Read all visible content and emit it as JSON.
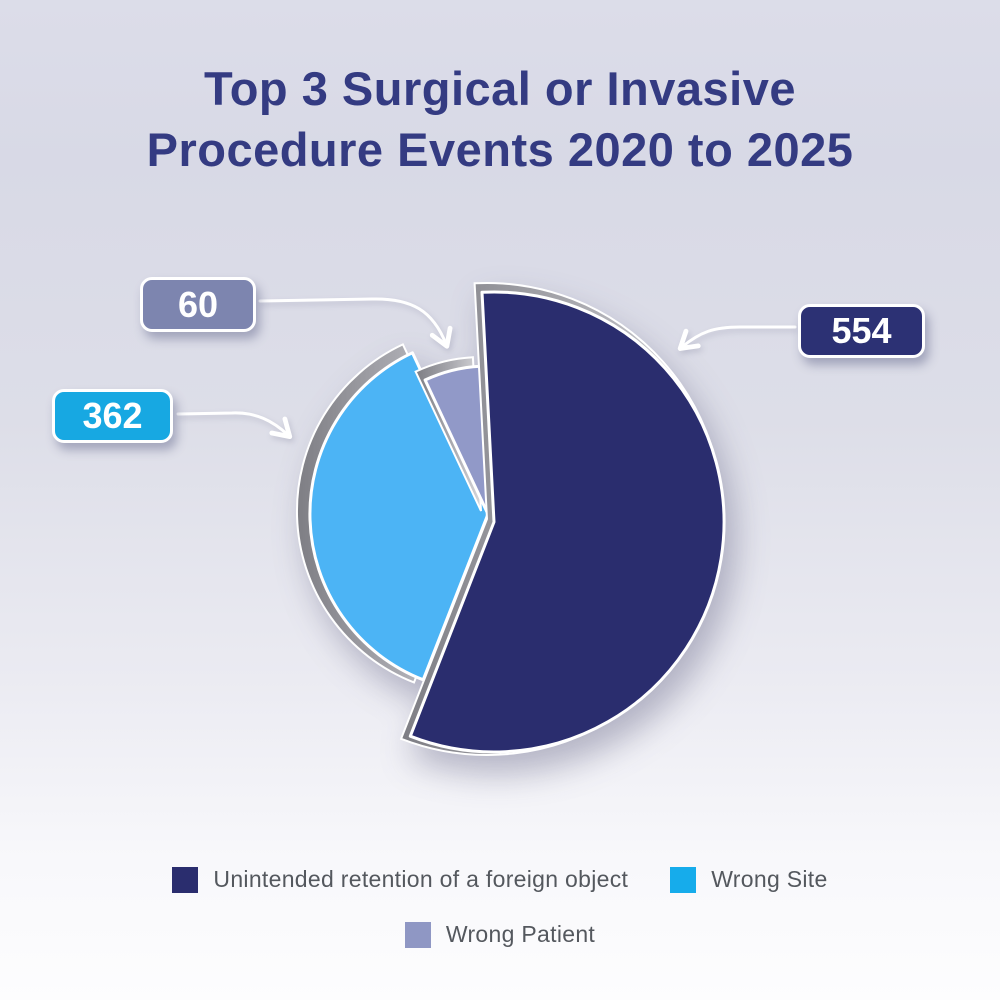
{
  "title": {
    "line1": "Top 3 Surgical or Invasive",
    "line2": "Procedure Events 2020 to 2025"
  },
  "chart_data": {
    "type": "pie",
    "title": "Top 3 Surgical or Invasive Procedure Events 2020 to 2025",
    "categories": [
      "Unintended retention of a foreign object",
      "Wrong Site",
      "Wrong Patient"
    ],
    "values": [
      554,
      362,
      60
    ],
    "colors": [
      "#2a2d6e",
      "#4cb4f5",
      "#9199c8"
    ],
    "style": "3d exploded pie, largest slice offset",
    "legend_position": "bottom",
    "callouts": [
      {
        "value": "554",
        "badge_color": "#2c3174"
      },
      {
        "value": "362",
        "badge_color": "#17a8e2"
      },
      {
        "value": "60",
        "badge_color": "#7d85af"
      }
    ]
  },
  "legend": {
    "items": [
      {
        "label": "Unintended retention of a foreign object",
        "color": "#2a2d6e"
      },
      {
        "label": "Wrong Site",
        "color": "#16aceb"
      },
      {
        "label": "Wrong Patient",
        "color": "#8f97c4"
      }
    ]
  }
}
